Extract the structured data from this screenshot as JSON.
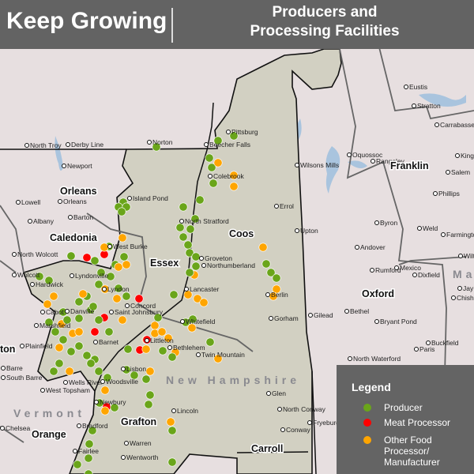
{
  "header": {
    "brand": "Keep Growing",
    "subtitle_line1": "Producers and",
    "subtitle_line2": "Processing Facilities"
  },
  "legend": {
    "title": "Legend",
    "items": [
      {
        "label": "Producer",
        "color": "#6aa51a"
      },
      {
        "label": "Meat Processor",
        "color": "#ff0000"
      },
      {
        "label": "Other Food Processor/ Manufacturer",
        "label_lines": [
          "Other Food",
          "Processor/",
          "Manufacturer"
        ],
        "color": "#ffa500"
      }
    ]
  },
  "map": {
    "states": [
      "Vermont",
      "New Hampshire",
      "Ma"
    ],
    "counties": [
      "Orleans",
      "Caledonia",
      "Essex",
      "Coos",
      "Franklin",
      "Oxford",
      "Grafton",
      "Orange",
      "Carroll",
      "ton"
    ],
    "towns": [
      "North Troy",
      "Derby Line",
      "Norton",
      "Beecher Falls",
      "Pittsburg",
      "Newport",
      "Colebrook",
      "Island Pond",
      "Orleans",
      "Lowell",
      "Albany",
      "Barton",
      "North Stratford",
      "West Burke",
      "North Wolcott",
      "Wolcott",
      "Hardwick",
      "Lyndonville",
      "Lyndon",
      "Groveton",
      "Lancaster",
      "Concord",
      "Danville",
      "Saint Johnsbury",
      "Cabot",
      "Marshfield",
      "Whitefield",
      "Plainfield",
      "Barnet",
      "Littleton",
      "Bethlehem",
      "Twin Mountain",
      "Barre",
      "South Barre",
      "Lisbon",
      "Wells River",
      "Woodsville",
      "West Topsham",
      "Newbury",
      "Chelsea",
      "Bradford",
      "Fairlee",
      "Lincoln",
      "Warren",
      "Wentworth",
      "Wilsons Mills",
      "Errol",
      "Upton",
      "Oquossoc",
      "Rangeley",
      "Eustis",
      "Stratton",
      "Carrabassett",
      "Kingfield",
      "Salem",
      "Phillips",
      "Byron",
      "Weld",
      "Farmington",
      "Andover",
      "Rumford",
      "Mexico",
      "Dixfield",
      "Berlin",
      "Gorham",
      "Gilead",
      "Bethel",
      "Bryant Pond",
      "Buckfield",
      "Paris",
      "North Waterford",
      "Glen",
      "North Conway",
      "Conway",
      "Fryeburg",
      "Northumberland",
      "Jay",
      "Chisholm",
      "Wilton"
    ]
  }
}
